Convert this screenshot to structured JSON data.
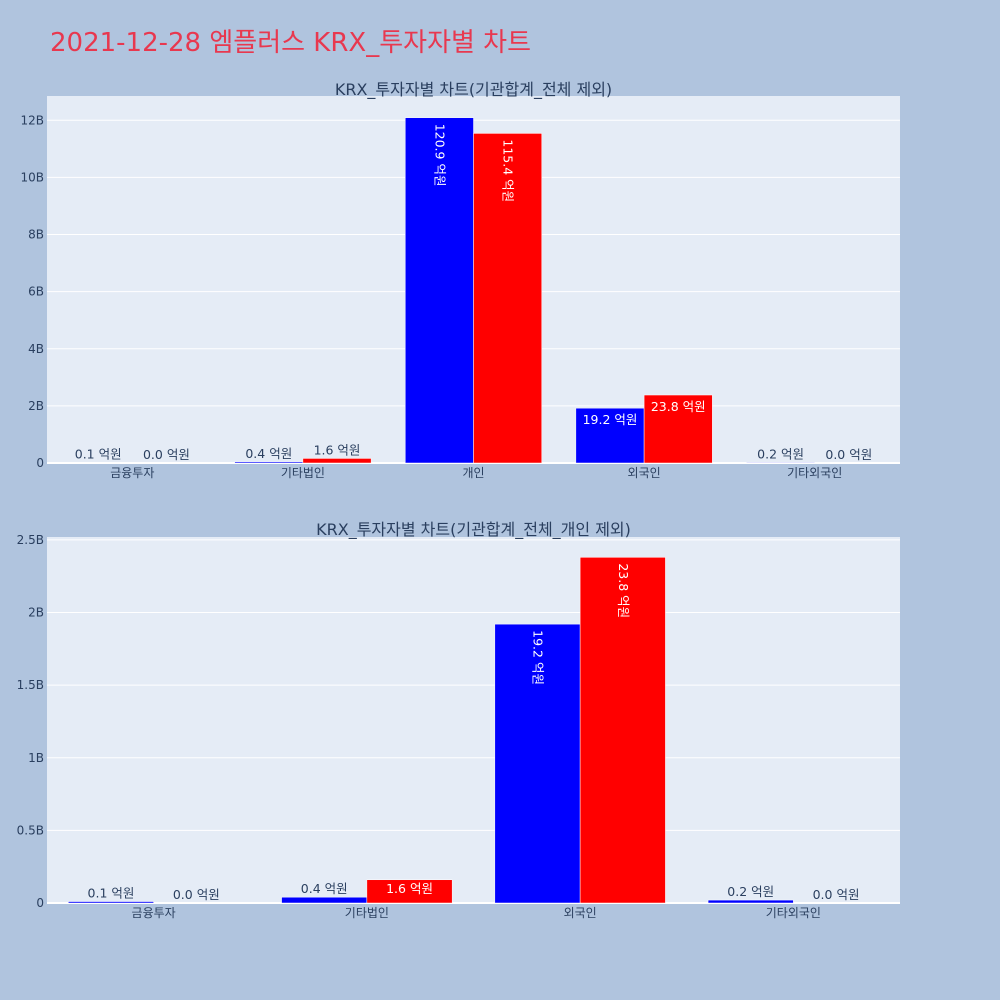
{
  "title": "2021-12-28 엠플러스 KRX_투자자별 차트",
  "colors": {
    "buy": "#0000ff",
    "sell": "#ff0000",
    "plot_bg": "#e5ecf6",
    "page_bg": "#b0c4de"
  },
  "chart_data": [
    {
      "type": "bar",
      "title": "KRX_투자자별 차트(기관합계_전체 제외)",
      "categories": [
        "금융투자",
        "기타법인",
        "개인",
        "외국인",
        "기타외국인"
      ],
      "series": [
        {
          "color": "#0000ff",
          "values": [
            10000000,
            40000000,
            12090000000,
            1920000000,
            20000000
          ],
          "labels": [
            "0.1 억원",
            "0.4 억원",
            "120.9 억원",
            "19.2 억원",
            "0.2 억원"
          ]
        },
        {
          "color": "#ff0000",
          "values": [
            0,
            160000000,
            11540000000,
            2380000000,
            0
          ],
          "labels": [
            "0.0 억원",
            "1.6 억원",
            "115.4 억원",
            "23.8 억원",
            "0.0 억원"
          ]
        }
      ],
      "ylim": [
        0,
        12850000000
      ],
      "yticks": [
        0,
        2000000000,
        4000000000,
        6000000000,
        8000000000,
        10000000000,
        12000000000
      ],
      "yticklabels": [
        "0",
        "2B",
        "4B",
        "6B",
        "8B",
        "10B",
        "12B"
      ],
      "grid": true,
      "legend": "none"
    },
    {
      "type": "bar",
      "title": "KRX_투자자별 차트(기관합계_전체_개인 제외)",
      "categories": [
        "금융투자",
        "기타법인",
        "외국인",
        "기타외국인"
      ],
      "series": [
        {
          "color": "#0000ff",
          "values": [
            10000000,
            40000000,
            1920000000,
            20000000
          ],
          "labels": [
            "0.1 억원",
            "0.4 억원",
            "19.2 억원",
            "0.2 억원"
          ]
        },
        {
          "color": "#ff0000",
          "values": [
            0,
            160000000,
            2380000000,
            0
          ],
          "labels": [
            "0.0 억원",
            "1.6 억원",
            "23.8 억원",
            "0.0 억원"
          ]
        }
      ],
      "ylim": [
        0,
        2520000000
      ],
      "yticks": [
        0,
        500000000,
        1000000000,
        1500000000,
        2000000000,
        2500000000
      ],
      "yticklabels": [
        "0",
        "0.5B",
        "1B",
        "1.5B",
        "2B",
        "2.5B"
      ],
      "grid": true,
      "legend": "none"
    }
  ]
}
